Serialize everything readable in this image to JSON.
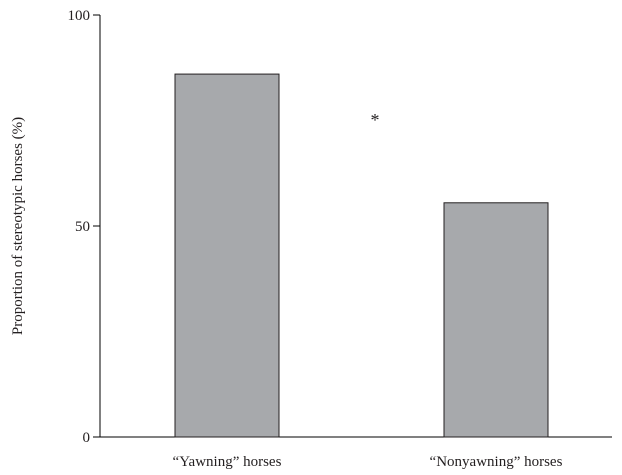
{
  "chart_data": {
    "type": "bar",
    "title": "",
    "xlabel": "",
    "ylabel": "Proportion of stereotypic horses (%)",
    "categories": [
      "“Yawning” horses",
      "“Nonyawning” horses"
    ],
    "values": [
      86,
      55.5
    ],
    "ylim": [
      0,
      100
    ],
    "yticks": [
      0,
      50,
      100
    ],
    "grid": false,
    "annotation": "*",
    "colors": {
      "bar_fill": "#a7a9ac",
      "bar_stroke": "#231f20",
      "axis": "#000000"
    }
  }
}
